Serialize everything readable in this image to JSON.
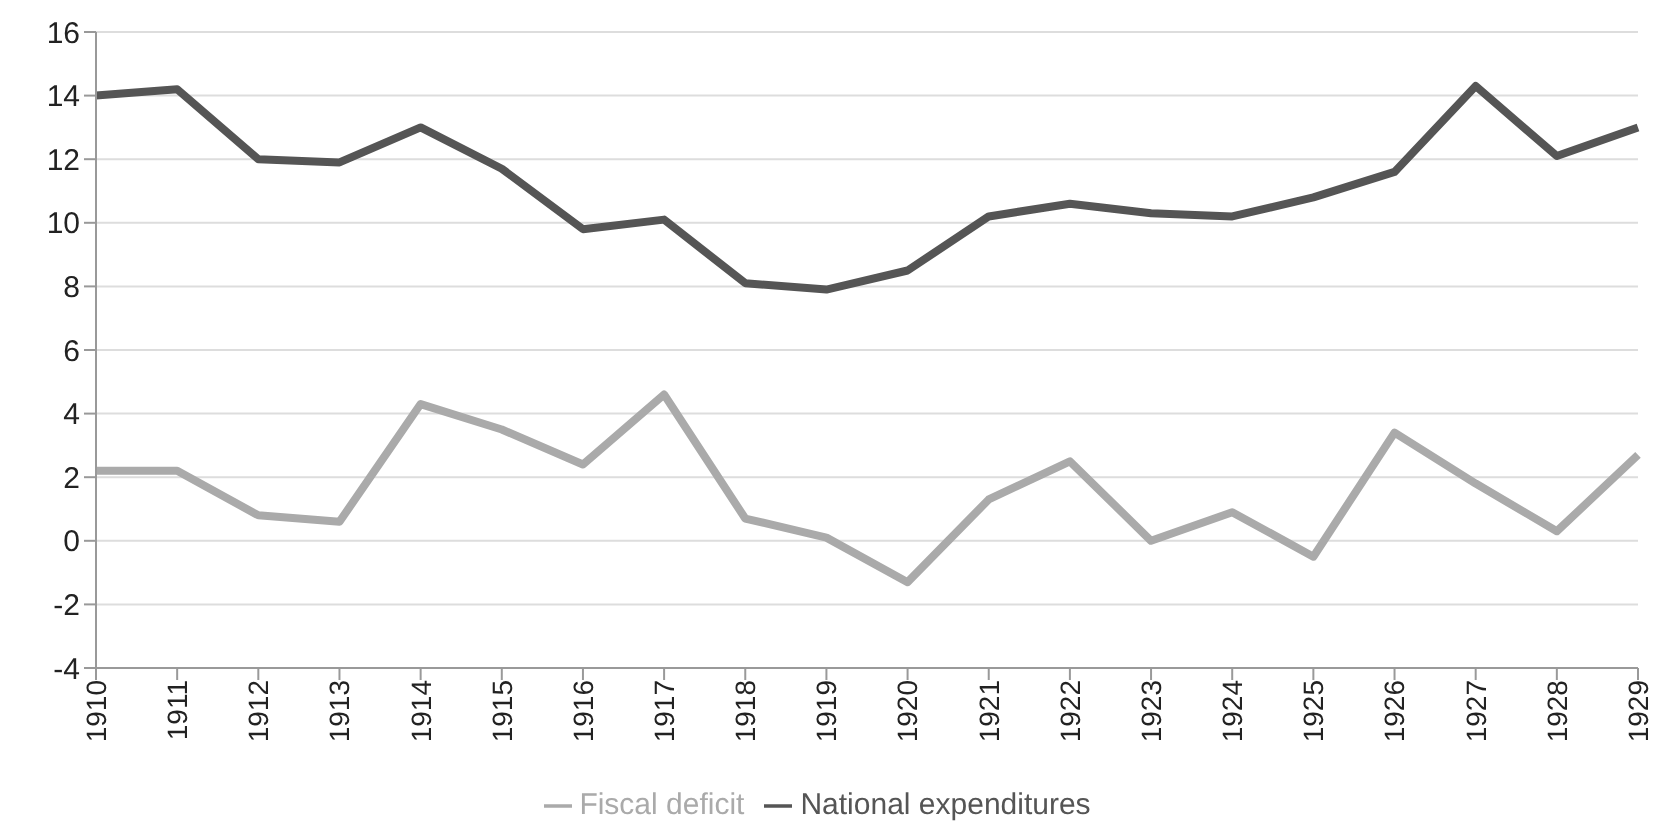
{
  "chart_data": {
    "type": "line",
    "categories": [
      "1910",
      "1911",
      "1912",
      "1913",
      "1914",
      "1915",
      "1916",
      "1917",
      "1918",
      "1919",
      "1920",
      "1921",
      "1922",
      "1923",
      "1924",
      "1925",
      "1926",
      "1927",
      "1928",
      "1929"
    ],
    "series": [
      {
        "name": "National expenditures",
        "color": "#555555",
        "values": [
          14.0,
          14.2,
          12.0,
          11.9,
          13.0,
          11.7,
          9.8,
          10.1,
          8.1,
          7.9,
          8.5,
          10.2,
          10.6,
          10.3,
          10.2,
          10.8,
          11.6,
          14.3,
          12.1,
          13.0
        ]
      },
      {
        "name": "Fiscal deficit",
        "color": "#aaaaaa",
        "values": [
          2.2,
          2.2,
          0.8,
          0.6,
          4.3,
          3.5,
          2.4,
          4.6,
          0.7,
          0.1,
          -1.3,
          1.3,
          2.5,
          0.0,
          0.9,
          -0.5,
          3.4,
          1.8,
          0.3,
          2.7
        ]
      }
    ],
    "ylim": [
      -4,
      16
    ],
    "yticks": [
      -4,
      -2,
      0,
      2,
      4,
      6,
      8,
      10,
      12,
      14,
      16
    ],
    "grid": "y",
    "legend": "bottom",
    "marker": "none",
    "line_style": "solid"
  }
}
